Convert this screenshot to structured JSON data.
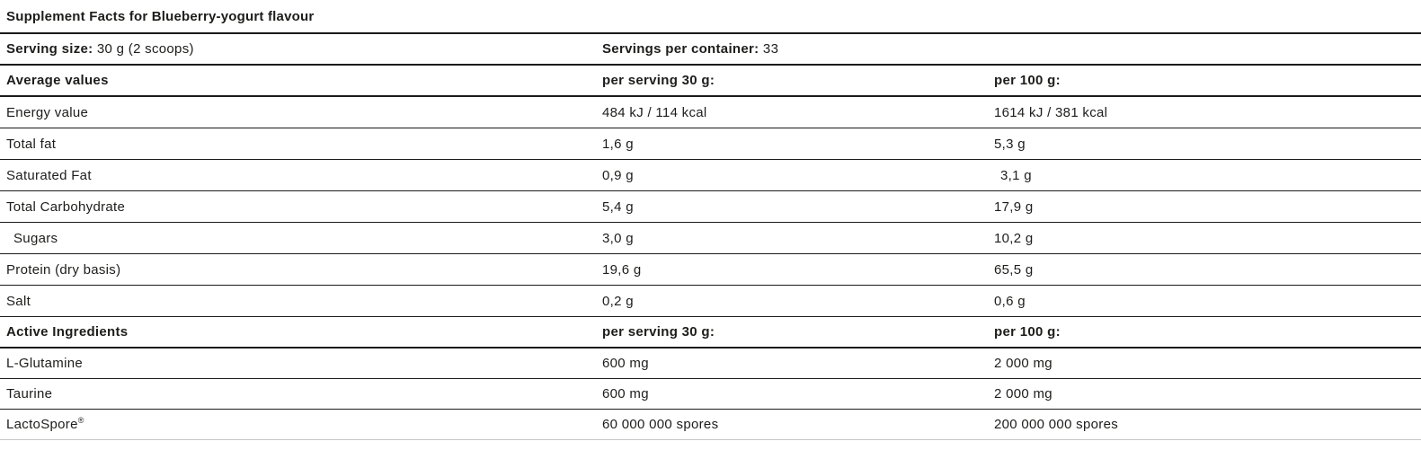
{
  "title": "Supplement Facts for Blueberry-yogurt flavour",
  "serving": {
    "size_label": "Serving size:",
    "size_value": "30 g (2 scoops)",
    "per_container_label": "Servings per container:",
    "per_container_value": "33"
  },
  "average_values": {
    "header": {
      "col1": "Average values",
      "col2": "per serving 30 g:",
      "col3": "per 100 g:"
    },
    "rows": [
      {
        "name": "Energy value",
        "per_serving": "484 kJ / 114 kcal",
        "per_100g": "1614 kJ / 381 kcal"
      },
      {
        "name": "Total fat",
        "per_serving": "1,6 g",
        "per_100g": "5,3 g"
      },
      {
        "name": "Saturated Fat",
        "per_serving": "0,9 g",
        "per_100g": "3,1 g"
      },
      {
        "name": "Total Carbohydrate",
        "per_serving": "5,4 g",
        "per_100g": "17,9 g"
      },
      {
        "name": "Sugars",
        "per_serving": "3,0 g",
        "per_100g": "10,2 g"
      },
      {
        "name": "Protein (dry basis)",
        "per_serving": "19,6 g",
        "per_100g": "65,5 g"
      },
      {
        "name": "Salt",
        "per_serving": "0,2 g",
        "per_100g": "0,6 g"
      }
    ]
  },
  "active_ingredients": {
    "header": {
      "col1": "Active Ingredients",
      "col2": "per serving 30 g:",
      "col3": "per 100 g:"
    },
    "rows": [
      {
        "name": "L-Glutamine",
        "name_suffix": "",
        "per_serving": "600 mg",
        "per_100g": "2 000 mg"
      },
      {
        "name": "Taurine",
        "name_suffix": "",
        "per_serving": "600 mg",
        "per_100g": "2 000 mg"
      },
      {
        "name": "LactoSpore",
        "name_suffix": "®",
        "per_serving": "60 000 000 spores",
        "per_100g": "200 000 000 spores"
      }
    ]
  },
  "colors": {
    "text": "#1d1d1b",
    "divider": "#1a1a1a",
    "bottom_divider": "#c6c6c6",
    "background": "#ffffff"
  }
}
